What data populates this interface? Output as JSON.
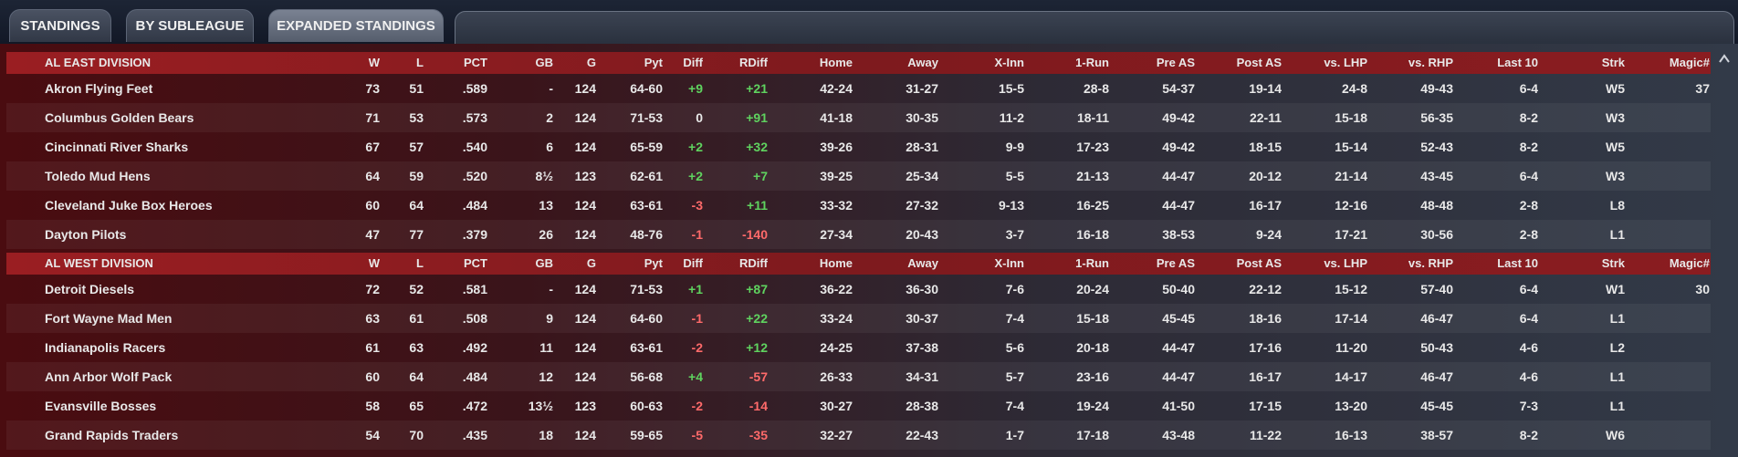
{
  "tabs": [
    "STANDINGS",
    "BY SUBLEAGUE",
    "EXPANDED STANDINGS"
  ],
  "columns": [
    "W",
    "L",
    "PCT",
    "GB",
    "G",
    "Pyt",
    "Diff",
    "RDiff",
    "Home",
    "Away",
    "X-Inn",
    "1-Run",
    "Pre AS",
    "Post AS",
    "vs. LHP",
    "vs. RHP",
    "Last 10",
    "Strk",
    "Magic#"
  ],
  "divisions": [
    {
      "name": "AL EAST DIVISION",
      "rows": [
        [
          "Akron  Flying Feet",
          "73",
          "51",
          ".589",
          "-",
          "124",
          "64-60",
          "+9",
          "+21",
          "42-24",
          "31-27",
          "15-5",
          "28-8",
          "54-37",
          "19-14",
          "24-8",
          "49-43",
          "6-4",
          "W5",
          "37"
        ],
        [
          "Columbus Golden Bears",
          "71",
          "53",
          ".573",
          "2",
          "124",
          "71-53",
          "0",
          "+91",
          "41-18",
          "30-35",
          "11-2",
          "18-11",
          "49-42",
          "22-11",
          "15-18",
          "56-35",
          "8-2",
          "W3"
        ],
        [
          "Cincinnati River Sharks",
          "67",
          "57",
          ".540",
          "6",
          "124",
          "65-59",
          "+2",
          "+32",
          "39-26",
          "28-31",
          "9-9",
          "17-23",
          "49-42",
          "18-15",
          "15-14",
          "52-43",
          "8-2",
          "W5"
        ],
        [
          "Toledo  Mud Hens",
          "64",
          "59",
          ".520",
          "8½",
          "123",
          "62-61",
          "+2",
          "+7",
          "39-25",
          "25-34",
          "5-5",
          "21-13",
          "44-47",
          "20-12",
          "21-14",
          "43-45",
          "6-4",
          "W3"
        ],
        [
          "Cleveland Juke Box Heroes",
          "60",
          "64",
          ".484",
          "13",
          "124",
          "63-61",
          "-3",
          "+11",
          "33-32",
          "27-32",
          "9-13",
          "16-25",
          "44-47",
          "16-17",
          "12-16",
          "48-48",
          "2-8",
          "L8"
        ],
        [
          "Dayton Pilots",
          "47",
          "77",
          ".379",
          "26",
          "124",
          "48-76",
          "-1",
          "-140",
          "27-34",
          "20-43",
          "3-7",
          "16-18",
          "38-53",
          "9-24",
          "17-21",
          "30-56",
          "2-8",
          "L1"
        ]
      ]
    },
    {
      "name": "AL WEST DIVISION",
      "rows": [
        [
          "Detroit Diesels",
          "72",
          "52",
          ".581",
          "-",
          "124",
          "71-53",
          "+1",
          "+87",
          "36-22",
          "36-30",
          "7-6",
          "20-24",
          "50-40",
          "22-12",
          "15-12",
          "57-40",
          "6-4",
          "W1",
          "30"
        ],
        [
          "Fort Wayne Mad Men",
          "63",
          "61",
          ".508",
          "9",
          "124",
          "64-60",
          "-1",
          "+22",
          "33-24",
          "30-37",
          "7-4",
          "15-18",
          "45-45",
          "18-16",
          "17-14",
          "46-47",
          "6-4",
          "L1"
        ],
        [
          "Indianapolis Racers",
          "61",
          "63",
          ".492",
          "11",
          "124",
          "63-61",
          "-2",
          "+12",
          "24-25",
          "37-38",
          "5-6",
          "20-18",
          "44-47",
          "17-16",
          "11-20",
          "50-43",
          "4-6",
          "L2"
        ],
        [
          "Ann Arbor Wolf Pack",
          "60",
          "64",
          ".484",
          "12",
          "124",
          "56-68",
          "+4",
          "-57",
          "26-33",
          "34-31",
          "5-7",
          "23-16",
          "44-47",
          "16-17",
          "14-17",
          "46-47",
          "4-6",
          "L1"
        ],
        [
          "Evansville Bosses",
          "58",
          "65",
          ".472",
          "13½",
          "123",
          "60-63",
          "-2",
          "-14",
          "30-27",
          "28-38",
          "7-4",
          "19-24",
          "41-50",
          "17-15",
          "13-20",
          "45-45",
          "7-3",
          "L1"
        ],
        [
          "Grand Rapids Traders",
          "54",
          "70",
          ".435",
          "18",
          "124",
          "59-65",
          "-5",
          "-35",
          "32-27",
          "22-43",
          "1-7",
          "17-18",
          "43-48",
          "11-22",
          "16-13",
          "38-57",
          "8-2",
          "W6"
        ]
      ]
    }
  ]
}
